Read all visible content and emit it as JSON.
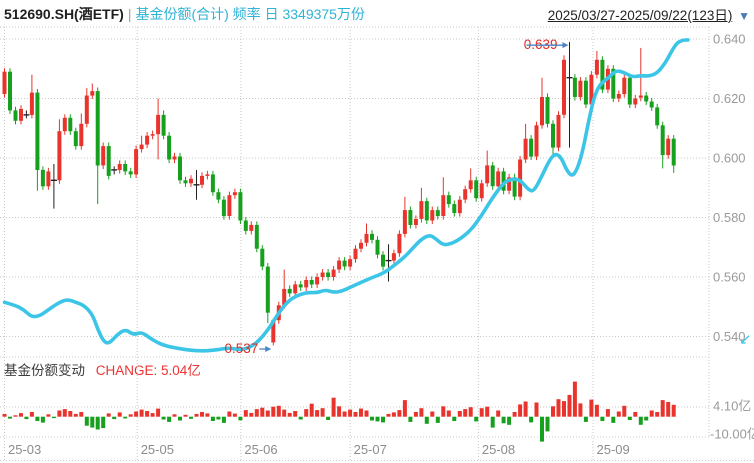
{
  "header": {
    "symbol": "512690.SH(酒ETF)",
    "separator": "|",
    "series_label": "基金份额(合计) 频率 日 3349375万份",
    "date_range": "2025/03/27-2025/09/22(123日)",
    "dropdown_icon": "▼"
  },
  "volume_panel": {
    "label": "基金份额变动",
    "change_label": "CHANGE: 5.04亿",
    "axis_tick_labels": [
      "4.10亿",
      "-10.00亿"
    ],
    "axis_tick_values": [
      4.1,
      -10.0
    ],
    "unit": "亿"
  },
  "corner_mark": "↙",
  "colors": {
    "up": "#e8342c",
    "down": "#17a01e",
    "flat": "#222222",
    "share_line": "#3cc5e6",
    "header_series": "#2fb3d6",
    "annotation_text": "#e02c24",
    "arrow": "#4a86c8",
    "price_axis_text": "#9a9a9a",
    "x_axis_text": "#8c8c8c",
    "grid": "#c9c9c9",
    "volume_change_text": "#ef3333"
  },
  "chart_data": {
    "type": "candlestick",
    "title": "512690.SH(酒ETF) 基金份额(合计) 日K",
    "legend_position": "none",
    "grid": true,
    "price_axis": {
      "side": "right",
      "tick_labels": [
        "0.640",
        "0.620",
        "0.600",
        "0.580",
        "0.560",
        "0.540"
      ],
      "tick_values": [
        0.64,
        0.62,
        0.6,
        0.58,
        0.56,
        0.54
      ]
    },
    "month_ticks": [
      {
        "label": "25-03",
        "day": 0
      },
      {
        "label": "25-05",
        "day": 24.2
      },
      {
        "label": "25-06",
        "day": 43.1
      },
      {
        "label": "25-07",
        "day": 63.0
      },
      {
        "label": "25-08",
        "day": 86.4
      },
      {
        "label": "25-09",
        "day": 107.3
      }
    ],
    "annotations": [
      {
        "text": "0.639",
        "day": 103,
        "value": 0.639,
        "kind": "high"
      },
      {
        "text": "0.537",
        "day": 49,
        "value": 0.537,
        "kind": "low"
      }
    ],
    "first_open": 0.6215,
    "closes": [
      0.629,
      0.616,
      0.6125,
      0.6165,
      0.6145,
      0.622,
      0.596,
      0.5905,
      0.5955,
      0.5925,
      0.609,
      0.6135,
      0.609,
      0.604,
      0.6115,
      0.621,
      0.6225,
      0.5975,
      0.604,
      0.594,
      0.596,
      0.598,
      0.5955,
      0.5945,
      0.603,
      0.6045,
      0.6075,
      0.608,
      0.6145,
      0.6075,
      0.5995,
      0.6005,
      0.5925,
      0.5915,
      0.593,
      0.591,
      0.594,
      0.5945,
      0.5885,
      0.586,
      0.5805,
      0.5875,
      0.5885,
      0.579,
      0.5755,
      0.5775,
      0.5695,
      0.5635,
      0.548,
      0.5455,
      0.5505,
      0.556,
      0.5545,
      0.5575,
      0.5565,
      0.559,
      0.5575,
      0.56,
      0.5615,
      0.56,
      0.5625,
      0.5655,
      0.5635,
      0.566,
      0.5695,
      0.5715,
      0.5745,
      0.5725,
      0.5675,
      0.5635,
      0.5655,
      0.568,
      0.5745,
      0.5825,
      0.5775,
      0.5795,
      0.5855,
      0.579,
      0.5825,
      0.5805,
      0.5875,
      0.5845,
      0.5815,
      0.586,
      0.5895,
      0.5925,
      0.5865,
      0.5915,
      0.5975,
      0.5905,
      0.5955,
      0.589,
      0.5935,
      0.587,
      0.5995,
      0.6065,
      0.6005,
      0.611,
      0.6205,
      0.6115,
      0.6035,
      0.6145,
      0.633,
      0.627,
      0.6205,
      0.626,
      0.618,
      0.628,
      0.633,
      0.623,
      0.63,
      0.62,
      0.6215,
      0.627,
      0.618,
      0.62,
      0.621,
      0.619,
      0.617,
      0.611,
      0.601,
      0.6065,
      0.5975
    ],
    "ohlc_overrides": {
      "4": {
        "o": 0.6148
      },
      "5": {
        "h": 0.628
      },
      "6": {
        "l": 0.589
      },
      "9": {
        "o": 0.5928,
        "h": 0.598,
        "l": 0.583
      },
      "10": {
        "h": 0.613
      },
      "14": {
        "h": 0.615
      },
      "15": {
        "h": 0.6235
      },
      "16": {
        "h": 0.625
      },
      "17": {
        "l": 0.5845
      },
      "20": {
        "o": 0.5957
      },
      "25": {
        "h": 0.6075
      },
      "28": {
        "h": 0.62,
        "l": 0.5995
      },
      "29": {
        "h": 0.616
      },
      "35": {
        "o": 0.5913,
        "h": 0.596,
        "l": 0.586
      },
      "48": {
        "l": 0.5445
      },
      "49": {
        "o": 0.538,
        "h": 0.546,
        "l": 0.537
      },
      "51": {
        "h": 0.5625
      },
      "66": {
        "h": 0.578
      },
      "70": {
        "o": 0.5658,
        "h": 0.571,
        "l": 0.5585
      },
      "73": {
        "h": 0.587
      },
      "76": {
        "h": 0.59
      },
      "80": {
        "h": 0.5935
      },
      "85": {
        "h": 0.5965
      },
      "88": {
        "h": 0.6025
      },
      "95": {
        "h": 0.6115
      },
      "98": {
        "h": 0.627
      },
      "100": {
        "l": 0.6
      },
      "102": {
        "h": 0.6345
      },
      "103": {
        "o": 0.6273,
        "h": 0.639,
        "l": 0.6035
      },
      "108": {
        "h": 0.636
      },
      "116": {
        "o": 0.6203,
        "h": 0.637
      },
      "120": {
        "l": 0.5965
      },
      "122": {
        "l": 0.595
      }
    },
    "share_line": {
      "name": "基金份额(合计)",
      "current": "3349375万份",
      "points": [
        [
          0,
          0.5515
        ],
        [
          2,
          0.5505
        ],
        [
          3.5,
          0.549
        ],
        [
          5,
          0.5465
        ],
        [
          6.5,
          0.547
        ],
        [
          8,
          0.549
        ],
        [
          10,
          0.5515
        ],
        [
          11.5,
          0.5525
        ],
        [
          13,
          0.5515
        ],
        [
          14.5,
          0.5505
        ],
        [
          16,
          0.5475
        ],
        [
          17,
          0.5425
        ],
        [
          18,
          0.5385
        ],
        [
          19,
          0.5375
        ],
        [
          20.5,
          0.5405
        ],
        [
          22,
          0.5425
        ],
        [
          23.5,
          0.5405
        ],
        [
          25,
          0.5415
        ],
        [
          26.5,
          0.5395
        ],
        [
          28,
          0.5378
        ],
        [
          29.5,
          0.5368
        ],
        [
          31,
          0.5362
        ],
        [
          33,
          0.5356
        ],
        [
          35,
          0.5352
        ],
        [
          37,
          0.5352
        ],
        [
          39,
          0.5356
        ],
        [
          41,
          0.5362
        ],
        [
          42.5,
          0.5356
        ],
        [
          44,
          0.5358
        ],
        [
          45.5,
          0.5372
        ],
        [
          47,
          0.5398
        ],
        [
          48.5,
          0.5435
        ],
        [
          50,
          0.548
        ],
        [
          51.5,
          0.5515
        ],
        [
          53,
          0.5535
        ],
        [
          55,
          0.5548
        ],
        [
          57,
          0.5547
        ],
        [
          58.5,
          0.5557
        ],
        [
          60,
          0.5548
        ],
        [
          61.5,
          0.5552
        ],
        [
          63,
          0.5565
        ],
        [
          65,
          0.5582
        ],
        [
          67,
          0.5598
        ],
        [
          69,
          0.5612
        ],
        [
          71,
          0.5638
        ],
        [
          73,
          0.5668
        ],
        [
          74.5,
          0.5698
        ],
        [
          76,
          0.5727
        ],
        [
          77.5,
          0.5742
        ],
        [
          78.5,
          0.573
        ],
        [
          80,
          0.5707
        ],
        [
          81.5,
          0.5712
        ],
        [
          83,
          0.5727
        ],
        [
          85,
          0.5757
        ],
        [
          87,
          0.5807
        ],
        [
          89,
          0.5868
        ],
        [
          91,
          0.5917
        ],
        [
          92.5,
          0.593
        ],
        [
          94,
          0.5927
        ],
        [
          95.5,
          0.5893
        ],
        [
          96.5,
          0.5887
        ],
        [
          98,
          0.594
        ],
        [
          99.5,
          0.5998
        ],
        [
          100.5,
          0.6015
        ],
        [
          101.5,
          0.6002
        ],
        [
          102.5,
          0.5958
        ],
        [
          103.5,
          0.5937
        ],
        [
          104.5,
          0.5965
        ],
        [
          105.5,
          0.603
        ],
        [
          106.5,
          0.6125
        ],
        [
          107.5,
          0.6205
        ],
        [
          108.5,
          0.6247
        ],
        [
          110,
          0.6268
        ],
        [
          111.5,
          0.6295
        ],
        [
          113,
          0.6287
        ],
        [
          114.5,
          0.6272
        ],
        [
          116,
          0.6277
        ],
        [
          117.5,
          0.6275
        ],
        [
          119,
          0.6285
        ],
        [
          120.5,
          0.632
        ],
        [
          121.5,
          0.6355
        ],
        [
          122.5,
          0.6385
        ],
        [
          123.5,
          0.6396
        ],
        [
          124.6,
          0.6397
        ]
      ]
    },
    "volume_values": [
      1.2,
      -0.8,
      0.6,
      1.5,
      -1.0,
      2.0,
      -1.8,
      -2.5,
      1.0,
      -0.6,
      2.6,
      3.2,
      2.4,
      1.2,
      2.0,
      -3.8,
      -4.6,
      -5.4,
      -4.8,
      1.4,
      -1.0,
      1.8,
      -0.7,
      1.0,
      2.2,
      3.0,
      2.4,
      1.5,
      3.4,
      -1.2,
      -2.2,
      1.0,
      -1.6,
      0.8,
      -0.9,
      1.2,
      2.0,
      1.4,
      -1.8,
      -1.2,
      -2.6,
      2.2,
      1.3,
      -1.5,
      2.8,
      1.6,
      3.2,
      3.8,
      2.6,
      4.2,
      4.6,
      3.0,
      1.6,
      2.4,
      -1.2,
      3.2,
      5.5,
      2.8,
      3.6,
      -1.4,
      8.0,
      4.4,
      2.2,
      3.0,
      2.0,
      3.4,
      2.6,
      -1.6,
      -2.0,
      -2.4,
      1.2,
      1.8,
      2.8,
      7.0,
      -2.2,
      2.0,
      3.6,
      -3.0,
      2.2,
      -2.6,
      4.4,
      2.6,
      -1.8,
      2.4,
      3.2,
      4.0,
      -2.0,
      3.6,
      4.2,
      -4.6,
      2.6,
      -2.8,
      -3.4,
      2.0,
      5.2,
      6.4,
      -2.4,
      6.0,
      -10.5,
      -6.2,
      4.4,
      7.4,
      6.6,
      9.2,
      14.8,
      5.6,
      -2.2,
      7.2,
      5.0,
      -1.8,
      3.2,
      -2.6,
      2.2,
      4.6,
      -1.4,
      2.0,
      -3.4,
      -1.6,
      2.6,
      2.0,
      7.0,
      6.2,
      5.04
    ]
  }
}
